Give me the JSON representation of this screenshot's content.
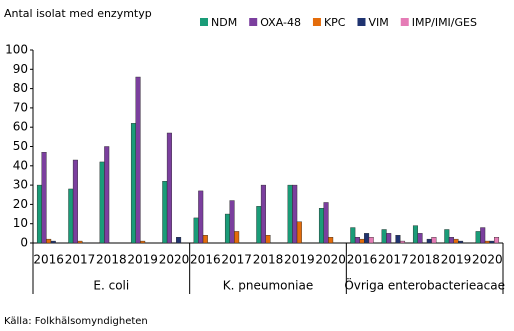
{
  "chart_data": {
    "type": "bar",
    "ylabel": "Antal isolat med enzymtyp",
    "source": "Källa: Folkhälsomyndigheten",
    "categories": [
      "2016",
      "2017",
      "2018",
      "2019",
      "2020",
      "2016",
      "2017",
      "2018",
      "2019",
      "2020",
      "2016",
      "2017",
      "2018",
      "2019",
      "2020"
    ],
    "groups": [
      "E. coli",
      "K. pneumoniae",
      "Övriga enterobacterieacae"
    ],
    "series": [
      {
        "name": "NDM",
        "color": "#1a9c78",
        "values": [
          30,
          28,
          42,
          62,
          32,
          13,
          15,
          19,
          30,
          18,
          8,
          7,
          9,
          7,
          6
        ]
      },
      {
        "name": "OXA-48",
        "color": "#7b3f9e",
        "values": [
          47,
          43,
          50,
          86,
          57,
          27,
          22,
          30,
          30,
          21,
          3,
          5,
          5,
          3,
          8
        ]
      },
      {
        "name": "KPC",
        "color": "#e46c0a",
        "values": [
          2,
          1,
          0,
          1,
          0,
          4,
          6,
          4,
          11,
          3,
          2,
          0,
          0,
          2,
          1
        ]
      },
      {
        "name": "VIM",
        "color": "#1f3370",
        "values": [
          1,
          0,
          0,
          0,
          3,
          0,
          0,
          0,
          0,
          0,
          5,
          4,
          2,
          1,
          1
        ]
      },
      {
        "name": "IMP/IMI/GES",
        "color": "#e57cb6",
        "values": [
          0,
          0,
          0,
          0,
          0,
          0,
          0,
          0,
          0,
          0,
          3,
          1,
          3,
          0,
          3
        ]
      }
    ],
    "ylim": [
      0,
      100
    ],
    "yticks": [
      0,
      10,
      20,
      30,
      40,
      50,
      60,
      70,
      80,
      90,
      100
    ]
  }
}
